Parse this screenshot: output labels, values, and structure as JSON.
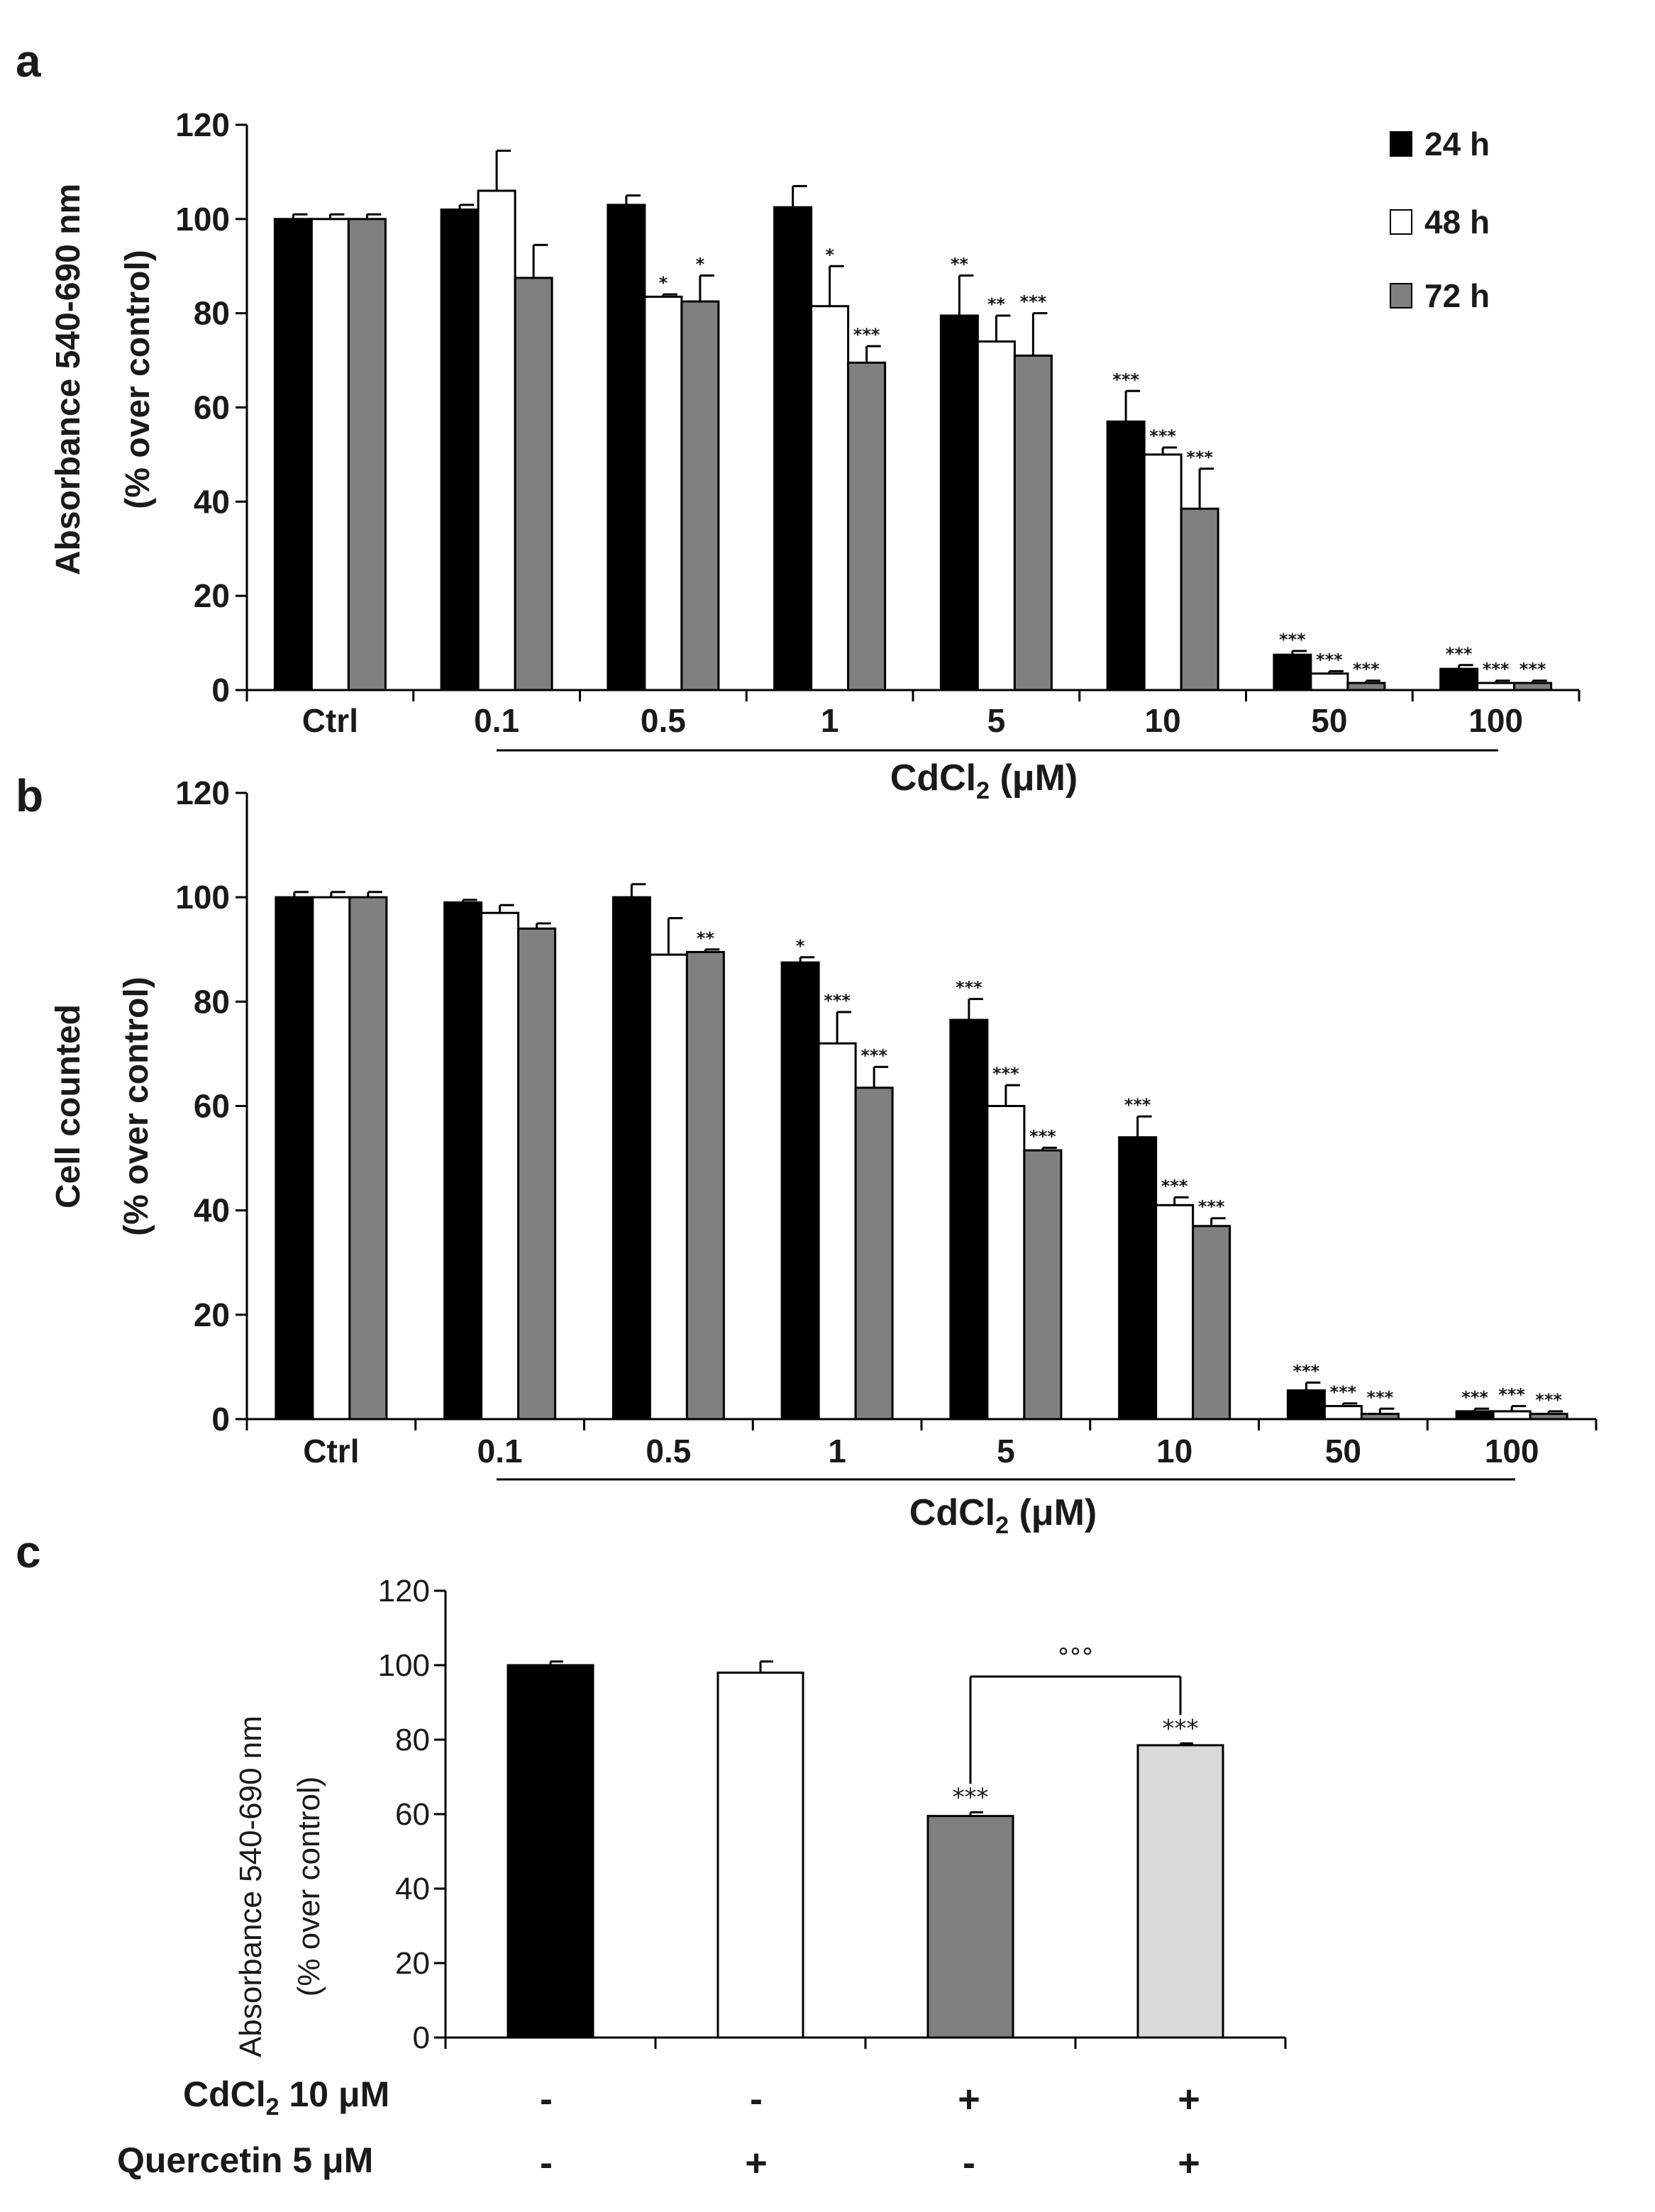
{
  "chart_data": [
    {
      "panel": "a",
      "type": "bar",
      "title": "",
      "ylabel_line1": "Absorbance  540-690 nm",
      "ylabel_line2": "(% over control)",
      "xlabel_main": "CdCl",
      "xlabel_sub": "2",
      "xlabel_unit": " (μM)",
      "ylim": [
        0,
        120
      ],
      "yticks": [
        0,
        20,
        40,
        60,
        80,
        100,
        120
      ],
      "categories": [
        "Ctrl",
        "0.1",
        "0.5",
        "1",
        "5",
        "10",
        "50",
        "100"
      ],
      "legend_position": "top-right",
      "series": [
        {
          "name": "24 h",
          "color": "#000000",
          "values": [
            100,
            102,
            103,
            102.5,
            79.5,
            57,
            7.5,
            4.5
          ],
          "errors": [
            1,
            1,
            2,
            4.5,
            8.5,
            6.5,
            0.8,
            0.8
          ],
          "marks": [
            "",
            "",
            "",
            "",
            "**",
            "***",
            "***",
            "***"
          ]
        },
        {
          "name": "48 h",
          "color": "#ffffff",
          "values": [
            100,
            106,
            83.5,
            81.5,
            74,
            50,
            3.5,
            1.5
          ],
          "errors": [
            1,
            8.5,
            0.5,
            8.5,
            5.5,
            1.5,
            0.5,
            0.5
          ],
          "marks": [
            "",
            "",
            "*",
            "*",
            "**",
            "***",
            "***",
            "***"
          ]
        },
        {
          "name": "72 h",
          "color": "#808080",
          "values": [
            100,
            87.5,
            82.5,
            69.5,
            71,
            38.5,
            1.5,
            1.5
          ],
          "errors": [
            1,
            7,
            5.5,
            3.5,
            9,
            8.5,
            0.5,
            0.5
          ],
          "marks": [
            "",
            "",
            "*",
            "***",
            "***",
            "***",
            "***",
            "***"
          ]
        }
      ]
    },
    {
      "panel": "b",
      "type": "bar",
      "title": "",
      "ylabel_line1": "Cell counted",
      "ylabel_line2": "(% over control)",
      "xlabel_main": "CdCl",
      "xlabel_sub": "2",
      "xlabel_unit": " (μM)",
      "ylim": [
        0,
        120
      ],
      "yticks": [
        0,
        20,
        40,
        60,
        80,
        100,
        120
      ],
      "categories": [
        "Ctrl",
        "0.1",
        "0.5",
        "1",
        "5",
        "10",
        "50",
        "100"
      ],
      "series": [
        {
          "name": "24 h",
          "color": "#000000",
          "values": [
            100,
            99,
            100,
            87.5,
            76.5,
            54,
            5.5,
            1.5
          ],
          "errors": [
            1,
            0.5,
            2.5,
            1,
            4,
            4,
            1.5,
            0.5
          ],
          "marks": [
            "",
            "",
            "",
            "*",
            "***",
            "***",
            "***",
            "***"
          ]
        },
        {
          "name": "48 h",
          "color": "#ffffff",
          "values": [
            100,
            97,
            89,
            72,
            60,
            41,
            2.5,
            1.5
          ],
          "errors": [
            1,
            1.5,
            7,
            6,
            4,
            1.5,
            0.5,
            1
          ],
          "marks": [
            "",
            "",
            "",
            "***",
            "***",
            "***",
            "***",
            "***"
          ]
        },
        {
          "name": "72 h",
          "color": "#808080",
          "values": [
            100,
            94,
            89.5,
            63.5,
            51.5,
            37,
            1,
            1
          ],
          "errors": [
            1,
            1,
            0.5,
            4,
            0.5,
            1.5,
            1,
            0.5
          ],
          "marks": [
            "",
            "",
            "**",
            "***",
            "***",
            "***",
            "***",
            "***"
          ]
        }
      ]
    },
    {
      "panel": "c",
      "type": "bar",
      "title": "",
      "ylabel_line1": "Absorbance  540-690 nm",
      "ylabel_line2": "(% over control)",
      "ylim": [
        0,
        120
      ],
      "yticks": [
        0,
        20,
        40,
        60,
        80,
        100,
        120
      ],
      "bars": [
        {
          "value": 100,
          "error": 1,
          "color": "#000000",
          "mark": ""
        },
        {
          "value": 98,
          "error": 3,
          "color": "#ffffff",
          "mark": ""
        },
        {
          "value": 59.5,
          "error": 1,
          "color": "#808080",
          "mark": "***"
        },
        {
          "value": 78.5,
          "error": 0.5,
          "color": "#d9d9d9",
          "mark": "***"
        }
      ],
      "bracket": {
        "from": 2,
        "to": 3,
        "label": "°°°"
      },
      "treatments": [
        {
          "label_main": "CdCl",
          "label_sub": "2",
          "label_rest": " 10 μM",
          "signs": [
            "-",
            "-",
            "+",
            "+"
          ]
        },
        {
          "label_main": "Quercetin 5  μM",
          "label_sub": "",
          "label_rest": "",
          "signs": [
            "-",
            "+",
            "-",
            "+"
          ]
        }
      ]
    }
  ]
}
